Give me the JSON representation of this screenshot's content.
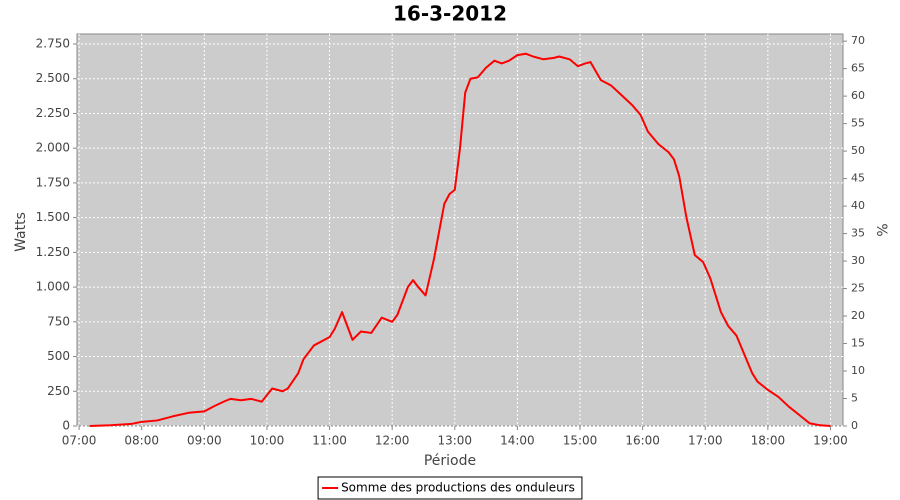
{
  "chart_data": {
    "type": "line",
    "title": "16-3-2012",
    "x_label": "Période",
    "y_label": "Watts",
    "y2_label": "%",
    "x": [
      "07:10",
      "07:30",
      "07:50",
      "08:00",
      "08:15",
      "08:30",
      "08:45",
      "09:00",
      "09:10",
      "09:20",
      "09:25",
      "09:35",
      "09:45",
      "09:55",
      "10:05",
      "10:15",
      "10:20",
      "10:30",
      "10:35",
      "10:45",
      "11:00",
      "11:05",
      "11:12",
      "11:17",
      "11:22",
      "11:30",
      "11:40",
      "11:50",
      "12:00",
      "12:05",
      "12:15",
      "12:20",
      "12:25",
      "12:32",
      "12:40",
      "12:50",
      "12:55",
      "13:00",
      "13:05",
      "13:10",
      "13:15",
      "13:22",
      "13:30",
      "13:38",
      "13:45",
      "13:52",
      "14:00",
      "14:08",
      "14:15",
      "14:25",
      "14:35",
      "14:40",
      "14:50",
      "14:58",
      "15:05",
      "15:10",
      "15:20",
      "15:30",
      "15:40",
      "15:50",
      "15:58",
      "16:05",
      "16:15",
      "16:25",
      "16:30",
      "16:35",
      "16:42",
      "16:50",
      "16:58",
      "17:05",
      "17:15",
      "17:22",
      "17:30",
      "17:35",
      "17:45",
      "17:50",
      "18:00",
      "18:10",
      "18:20",
      "18:30",
      "18:40",
      "18:50",
      "19:00"
    ],
    "series": [
      {
        "name": "Somme des productions des onduleurs",
        "color": "#ff0000",
        "values": [
          0,
          5,
          15,
          30,
          40,
          70,
          95,
          105,
          145,
          180,
          195,
          185,
          195,
          175,
          270,
          250,
          270,
          380,
          480,
          580,
          640,
          700,
          820,
          720,
          620,
          680,
          670,
          780,
          750,
          800,
          1000,
          1050,
          1000,
          940,
          1200,
          1600,
          1670,
          1700,
          2000,
          2400,
          2500,
          2510,
          2580,
          2630,
          2610,
          2630,
          2670,
          2680,
          2660,
          2640,
          2650,
          2660,
          2640,
          2590,
          2610,
          2620,
          2490,
          2450,
          2380,
          2310,
          2240,
          2120,
          2030,
          1970,
          1920,
          1800,
          1500,
          1230,
          1180,
          1060,
          820,
          720,
          650,
          560,
          380,
          320,
          260,
          210,
          140,
          80,
          20,
          5,
          0
        ]
      }
    ],
    "xlim": [
      "06:58",
      "19:12"
    ],
    "xticks": [
      "07:00",
      "08:00",
      "09:00",
      "10:00",
      "11:00",
      "12:00",
      "13:00",
      "14:00",
      "15:00",
      "16:00",
      "17:00",
      "18:00",
      "19:00"
    ],
    "ylim": [
      0,
      2822
    ],
    "yticks": [
      0,
      250,
      500,
      750,
      {
        "value": 1000,
        "label": "1.000"
      },
      {
        "value": 1250,
        "label": "1.250"
      },
      {
        "value": 1500,
        "label": "1.500"
      },
      {
        "value": 1750,
        "label": "1.750"
      },
      {
        "value": 2000,
        "label": "2.000"
      },
      {
        "value": 2250,
        "label": "2.250"
      },
      {
        "value": 2500,
        "label": "2.500"
      },
      {
        "value": 2750,
        "label": "2.750"
      }
    ],
    "y2lim": [
      0,
      71.3
    ],
    "y2ticks": [
      0,
      5,
      10,
      15,
      20,
      25,
      30,
      35,
      40,
      45,
      50,
      55,
      60,
      65,
      70
    ],
    "grid": true,
    "legend": "bottom"
  }
}
